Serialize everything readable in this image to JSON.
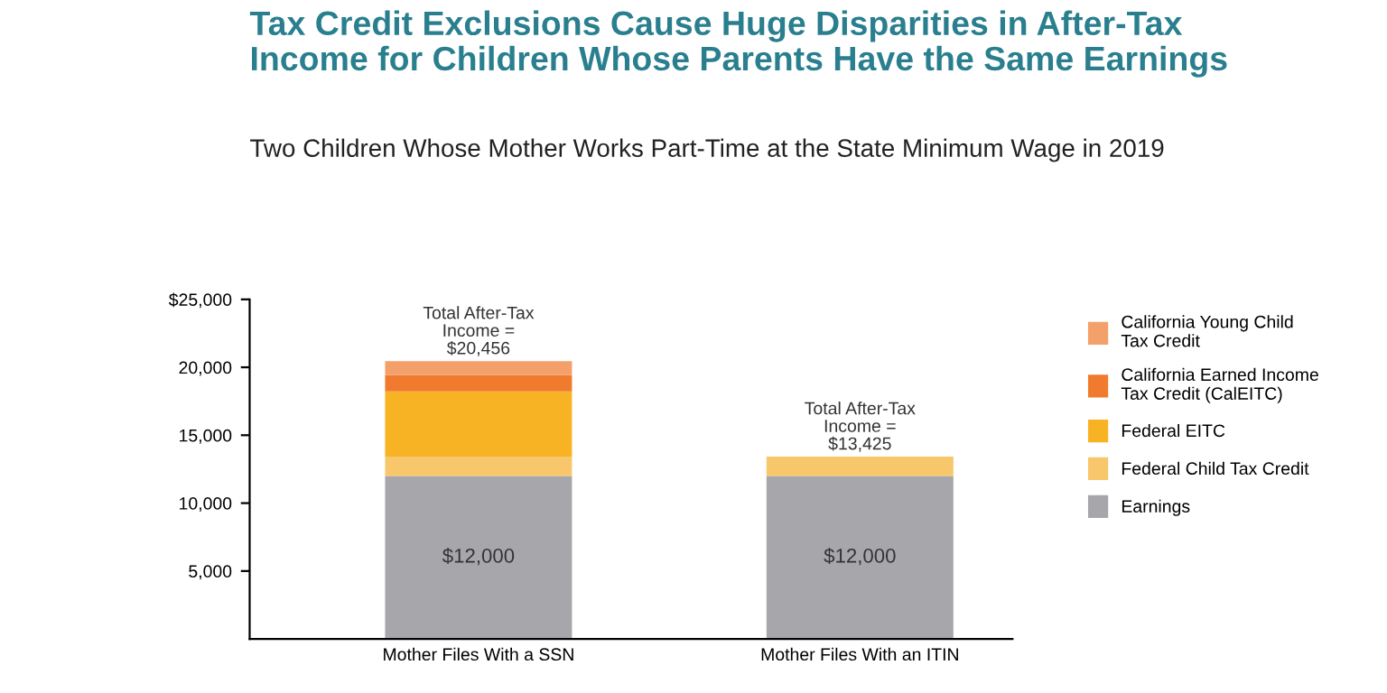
{
  "chart_data": {
    "type": "bar",
    "title": "Tax Credit Exclusions Cause Huge Disparities in After-Tax\nIncome for Children Whose Parents Have the Same Earnings",
    "subtitle": "Two Children Whose Mother Works Part-Time at the State Minimum Wage in 2019",
    "categories": [
      "Mother Files With a SSN",
      "Mother Files With an ITIN"
    ],
    "stacked": true,
    "series": [
      {
        "name": "Earnings",
        "color": "#a7a6ab",
        "values": [
          12000,
          12000
        ],
        "value_labels": [
          "$12,000",
          "$12,000"
        ]
      },
      {
        "name": "Federal Child Tax Credit",
        "color": "#f8c66b",
        "values": [
          1425,
          1425
        ]
      },
      {
        "name": "Federal EITC",
        "color": "#f8b324",
        "values": [
          4800,
          null
        ]
      },
      {
        "name": "California Earned Income\nTax Credit (CalEITC)",
        "color": "#f07b2e",
        "values": [
          1200,
          null
        ]
      },
      {
        "name": "California Young Child\nTax Credit",
        "color": "#f4a06a",
        "values": [
          1031,
          null
        ]
      }
    ],
    "totals": [
      "Total After-Tax\nIncome =\n$20,456",
      "Total After-Tax\nIncome =\n$13,425"
    ],
    "ylim": [
      0,
      25000
    ],
    "yticks": [
      {
        "value": 5000,
        "label": "5,000"
      },
      {
        "value": 10000,
        "label": "10,000"
      },
      {
        "value": 15000,
        "label": "15,000"
      },
      {
        "value": 20000,
        "label": "20,000"
      },
      {
        "value": 25000,
        "label": "$25,000"
      }
    ],
    "grid": false,
    "legend": "right"
  }
}
